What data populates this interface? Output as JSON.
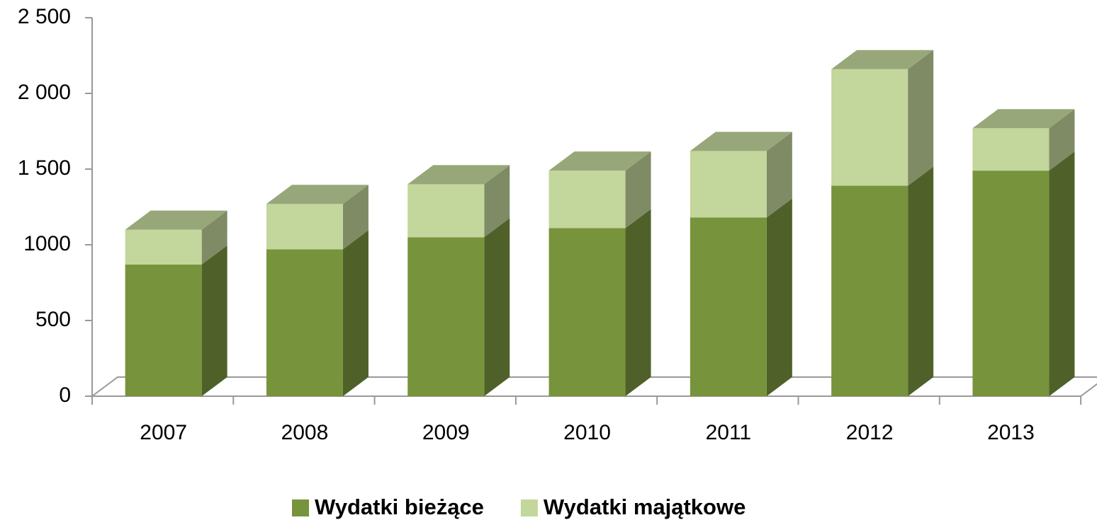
{
  "chart_data": {
    "type": "bar3d_stacked",
    "categories": [
      "2007",
      "2008",
      "2009",
      "2010",
      "2011",
      "2012",
      "2013"
    ],
    "series": [
      {
        "name": "Wydatki bieżące",
        "color": "#77933c",
        "values": [
          870,
          970,
          1050,
          1110,
          1180,
          1390,
          1490
        ]
      },
      {
        "name": "Wydatki majątkowe",
        "color": "#c3d69b",
        "values": [
          230,
          300,
          350,
          380,
          440,
          770,
          280
        ]
      }
    ],
    "ylim": [
      0,
      2500
    ],
    "yticks": [
      0,
      500,
      1000,
      {
        "value": 1500,
        "label": "1 500"
      },
      {
        "value": 2000,
        "label": "2 000"
      },
      {
        "value": 2500,
        "label": "2 500"
      }
    ],
    "legend": "bottom"
  }
}
